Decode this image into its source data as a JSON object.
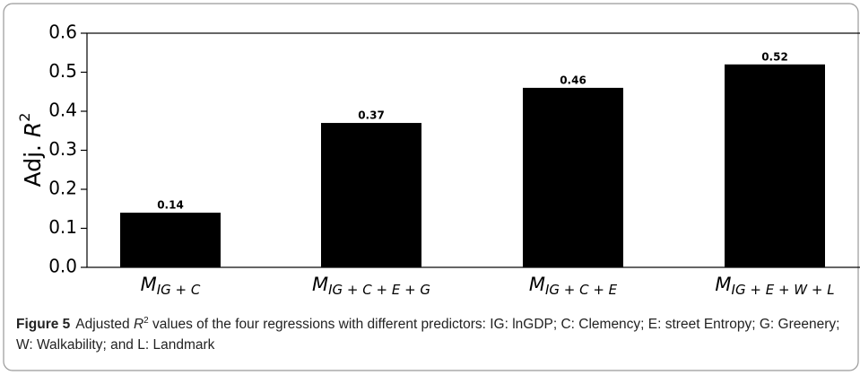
{
  "chart_data": {
    "type": "bar",
    "y_label": "Adj. R2",
    "categories": [
      "MIG + C",
      "MIG + C + E + G",
      "MIG + C + E",
      "MIG + E + W + L"
    ],
    "values": [
      0.14,
      0.37,
      0.46,
      0.52
    ],
    "color": "#000000",
    "ylim": [
      0,
      0.6
    ],
    "yticks": [
      {
        "value": 0,
        "label": "0.0"
      },
      0.1,
      0.2,
      0.3,
      0.4,
      0.5,
      0.6
    ]
  },
  "caption": {
    "label": "Figure 5",
    "before": "Adjusted",
    "symbol": "R",
    "sup": "2",
    "after": "values of the four regressions with different predictors: IG: lnGDP; C: Clemency; E: street Entropy; G: Greenery; W: Walkability; and L: Landmark"
  }
}
